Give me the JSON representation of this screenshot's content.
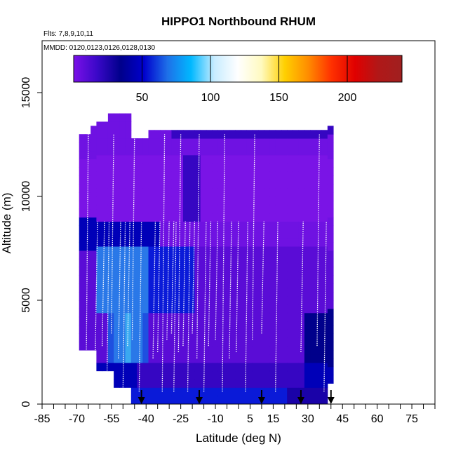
{
  "chart_data": {
    "type": "heatmap",
    "title": "HIPPO1 Northbound RHUM",
    "subtitle_flights": "Flts: 7,8,9,10,11",
    "subtitle_dates": "MMDD: 0120,0123,0126,0128,0130",
    "xlabel": "Latitude (deg N)",
    "ylabel": "Altitude (m)",
    "x_ticks": [
      "-85",
      "-70",
      "-55",
      "-40",
      "-25",
      "-10",
      "5",
      "15",
      "30",
      "45",
      "60",
      "75"
    ],
    "x_tick_values": [
      -85,
      -70,
      -55,
      -40,
      -25,
      -10,
      5,
      15,
      30,
      45,
      60,
      75
    ],
    "y_ticks": [
      "0",
      "5000",
      "10000",
      "15000"
    ],
    "y_tick_values": [
      0,
      5000,
      10000,
      15000
    ],
    "xlim": [
      -85,
      85
    ],
    "ylim": [
      0,
      17500
    ],
    "colorbar": {
      "ticks": [
        "50",
        "100",
        "150",
        "200"
      ],
      "tick_values": [
        50,
        100,
        150,
        200
      ],
      "range": [
        0,
        240
      ],
      "colors": [
        "#7b10e8",
        "#3a08c8",
        "#00008b",
        "#0000cd",
        "#1e70e8",
        "#00b8ff",
        "#c8ecff",
        "#ffffff",
        "#fffac0",
        "#ffd000",
        "#ff8c00",
        "#ff3000",
        "#e00000",
        "#b01818",
        "#a02020"
      ]
    },
    "flight_turnaround_markers_lat": [
      -42,
      -17,
      10,
      27,
      40
    ],
    "vertical_profiles_lat": [
      -66,
      -62,
      -59,
      -57,
      -55,
      -52,
      -50,
      -48,
      -46,
      -43,
      -37,
      -35,
      -33,
      -31,
      -29,
      -28,
      -26,
      -24,
      -22,
      -20,
      -18,
      -15,
      -13,
      -10,
      -7,
      -4,
      -1,
      3,
      6,
      10,
      16,
      27,
      34,
      37
    ],
    "grid": false
  }
}
